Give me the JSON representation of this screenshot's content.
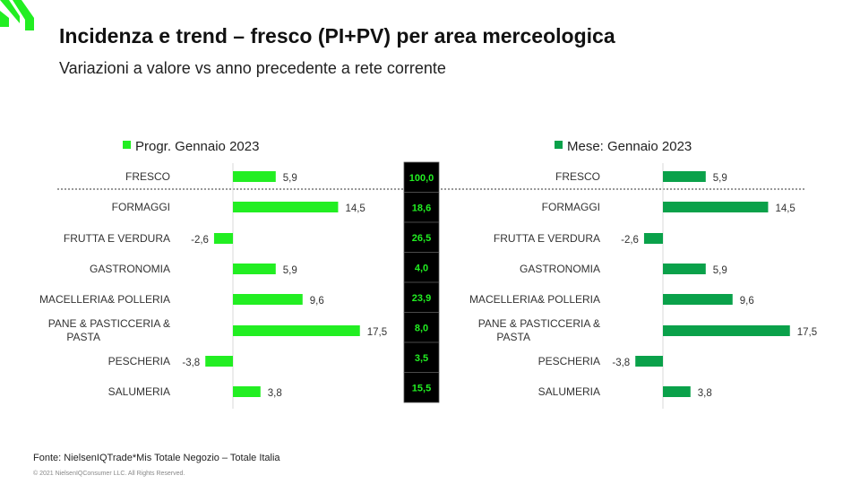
{
  "header": {
    "title": "Incidenza e trend – fresco (PI+PV) per area merceologica",
    "subtitle": "Variazioni a valore vs anno precedente a rete corrente"
  },
  "footer": {
    "source": "Fonte: NielsenIQTrade*Mis Totale Negozio – Totale Italia",
    "copyright": "© 2021 NielsenIQConsumer LLC. All Rights Reserved."
  },
  "colors": {
    "left_series": "#22ee22",
    "right_series": "#0aa14a",
    "brand": "#22ee22",
    "center_bg": "#000000",
    "center_text": "#22ee22"
  },
  "chart_data": [
    {
      "type": "bar",
      "orientation": "horizontal",
      "categories": [
        "FRESCO",
        "FORMAGGI",
        "FRUTTA E VERDURA",
        "GASTRONOMIA",
        "MACELLERIA& POLLERIA",
        "PANE & PASTICCERIA & PASTA",
        "PESCHERIA",
        "SALUMERIA"
      ],
      "series": [
        {
          "name": "Progr. Gennaio 2023",
          "values": [
            5.9,
            14.5,
            -2.6,
            5.9,
            9.6,
            17.5,
            -3.8,
            3.8
          ]
        }
      ],
      "value_labels": [
        "5,9",
        "14,5",
        "-2,6",
        "5,9",
        "9,6",
        "17,5",
        "-3,8",
        "3,8"
      ],
      "xlim": [
        -4,
        18
      ],
      "legend_position": "top",
      "grid": false
    },
    {
      "type": "table",
      "values": [
        100.0,
        18.6,
        26.5,
        4.0,
        23.9,
        8.0,
        3.5,
        15.5
      ],
      "labels": [
        "100,0",
        "18,6",
        "26,5",
        "4,0",
        "23,9",
        "8,0",
        "3,5",
        "15,5"
      ]
    },
    {
      "type": "bar",
      "orientation": "horizontal",
      "categories": [
        "FRESCO",
        "FORMAGGI",
        "FRUTTA E VERDURA",
        "GASTRONOMIA",
        "MACELLERIA& POLLERIA",
        "PANE & PASTICCERIA & PASTA",
        "PESCHERIA",
        "SALUMERIA"
      ],
      "series": [
        {
          "name": "Mese: Gennaio 2023",
          "values": [
            5.9,
            14.5,
            -2.6,
            5.9,
            9.6,
            17.5,
            -3.8,
            3.8
          ]
        }
      ],
      "value_labels": [
        "5,9",
        "14,5",
        "-2,6",
        "5,9",
        "9,6",
        "17,5",
        "-3,8",
        "3,8"
      ],
      "xlim": [
        -4,
        18
      ],
      "legend_position": "top",
      "grid": false
    }
  ]
}
